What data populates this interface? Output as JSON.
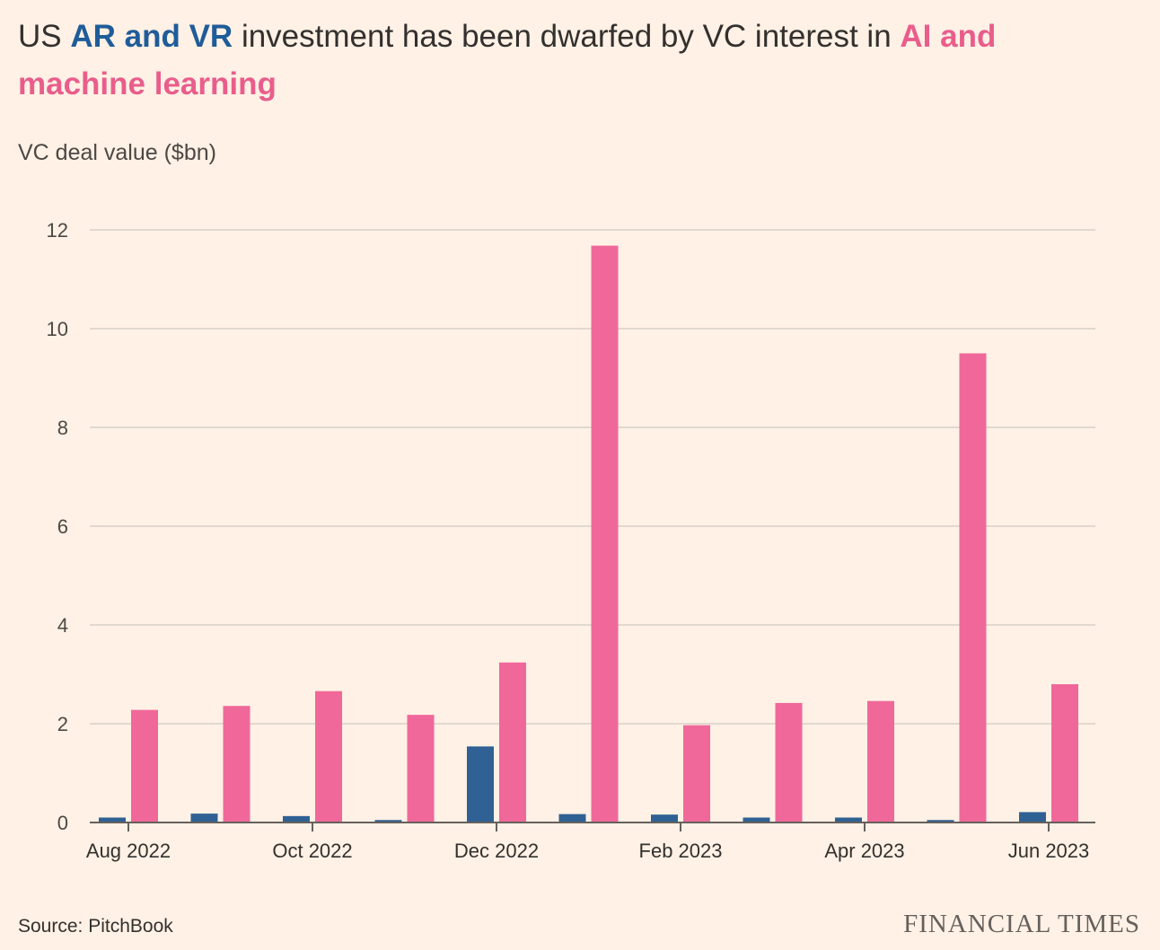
{
  "header": {
    "title_pre": "US ",
    "title_ar": "AR and VR",
    "title_mid": " investment has been dwarfed by VC interest in ",
    "title_ai": "AI and machine learning",
    "subtitle": "VC deal value ($bn)"
  },
  "footer": {
    "source": "Source: PitchBook",
    "brand": "FINANCIAL TIMES"
  },
  "colors": {
    "background": "#fff1e5",
    "arvr": "#2f6194",
    "ai": "#f0689a",
    "gridline": "#d7cfc8",
    "axis": "#66605c"
  },
  "chart_data": {
    "type": "bar",
    "title": "US AR and VR investment has been dwarfed by VC interest in AI and machine learning",
    "ylabel": "VC deal value ($bn)",
    "xlabel": "",
    "ylim": [
      0,
      12
    ],
    "yticks": [
      0,
      2,
      4,
      6,
      8,
      10,
      12
    ],
    "grid": true,
    "categories": [
      "Aug 2022",
      "Sep 2022",
      "Oct 2022",
      "Nov 2022",
      "Dec 2022",
      "Jan 2023",
      "Feb 2023",
      "Mar 2023",
      "Apr 2023",
      "May 2023",
      "Jun 2023"
    ],
    "xtick_labels": [
      {
        "index": 0,
        "label": "Aug 2022"
      },
      {
        "index": 2,
        "label": "Oct 2022"
      },
      {
        "index": 4,
        "label": "Dec 2022"
      },
      {
        "index": 6,
        "label": "Feb 2023"
      },
      {
        "index": 8,
        "label": "Apr 2023"
      },
      {
        "index": 10,
        "label": "Jun 2023"
      }
    ],
    "series": [
      {
        "name": "AR and VR",
        "color": "#2f6194",
        "values": [
          0.1,
          0.18,
          0.13,
          0.05,
          1.54,
          0.17,
          0.16,
          0.1,
          0.1,
          0.05,
          0.21
        ]
      },
      {
        "name": "AI and machine learning",
        "color": "#f0689a",
        "values": [
          2.28,
          2.36,
          2.66,
          2.18,
          3.24,
          11.68,
          1.97,
          2.42,
          2.46,
          9.5,
          2.8
        ]
      }
    ]
  }
}
